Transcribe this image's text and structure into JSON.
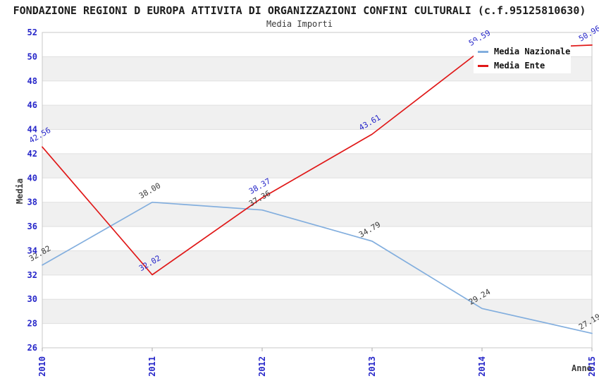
{
  "title": "FONDAZIONE REGIONI D EUROPA ATTIVITA DI ORGANIZZAZIONI CONFINI CULTURALI (c.f.95125810630)",
  "subtitle": "Media Importi",
  "chart_data": {
    "type": "line",
    "categories": [
      "2010",
      "2011",
      "2012",
      "2013",
      "2014",
      "2015"
    ],
    "series": [
      {
        "name": "Media Nazionale",
        "color": "#82aede",
        "label_color": "#3b3b3b",
        "values": [
          32.82,
          38.0,
          37.36,
          34.79,
          29.24,
          27.19
        ]
      },
      {
        "name": "Media Ente",
        "color": "#e01818",
        "label_color": "#2626c9",
        "values": [
          42.56,
          32.02,
          38.37,
          43.61,
          50.59,
          50.96
        ]
      }
    ],
    "xlabel": "Anno",
    "ylabel": "Media",
    "ylim": [
      26,
      52
    ],
    "ytick_step": 2,
    "xtick_rotation": -90,
    "data_label_rotation": -30,
    "tick_label_color": "#2626c9",
    "grid": "horizontal-bands",
    "band_colors": [
      "#ffffff",
      "#f0f0f0"
    ],
    "gridline_color": "#e0e0e0",
    "border_color": "#c8c8c8",
    "legend_position": "top-right"
  }
}
